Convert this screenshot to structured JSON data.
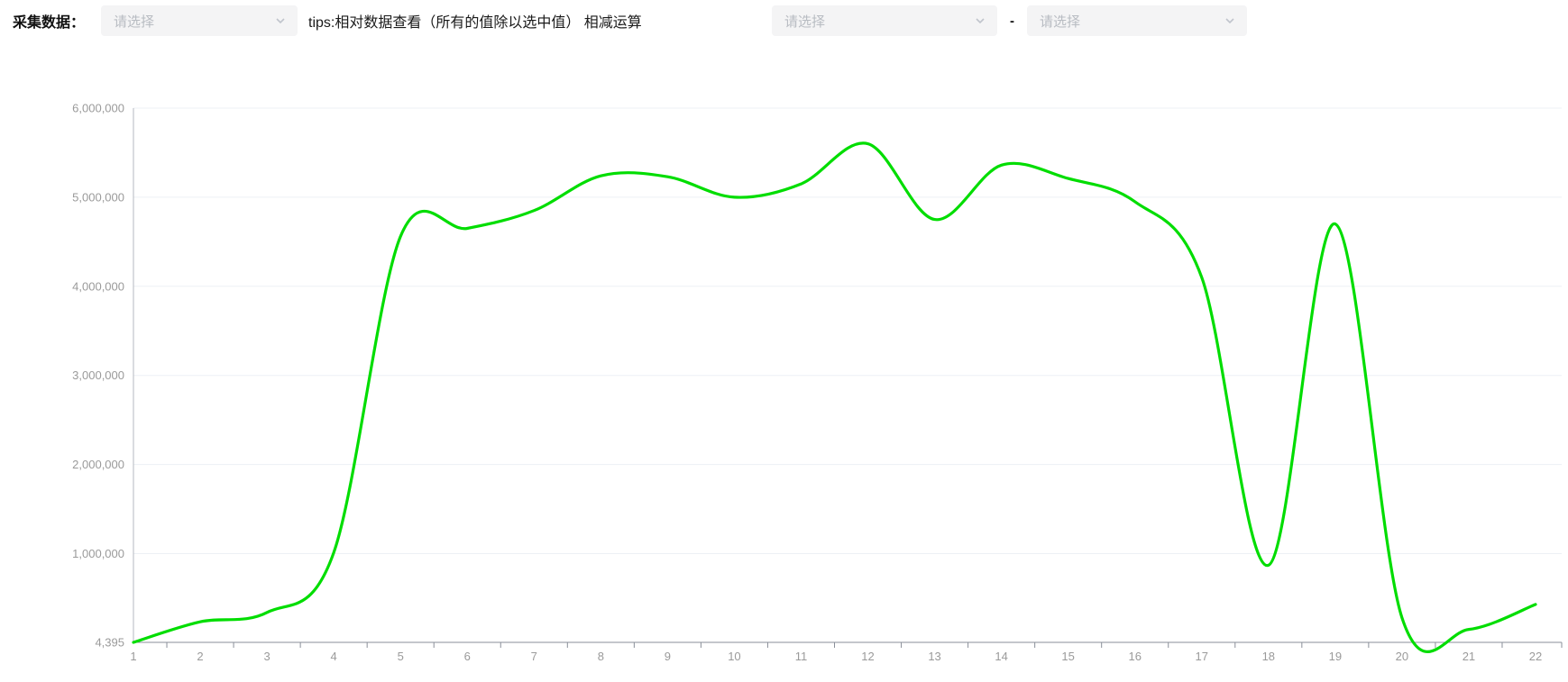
{
  "toolbar": {
    "label": "采集数据：",
    "select1_placeholder": "请选择",
    "tips": "tips:相对数据查看（所有的值除以选中值） 相减运算",
    "select2_placeholder": "请选择",
    "separator": "-",
    "select3_placeholder": "请选择"
  },
  "colors": {
    "line": "#00dd00",
    "grid": "#edf0f5",
    "x_axis": "#8a8f99",
    "y_axis": "#b5b9c0",
    "tick": "#8a8f99",
    "axis_label": "#9a9a9a",
    "select_bg": "#f4f4f5",
    "placeholder": "#b8bcc2"
  },
  "chart_data": {
    "type": "line",
    "smooth": true,
    "title": "",
    "xlabel": "",
    "ylabel": "",
    "legend": null,
    "grid": "horizontal-only",
    "x": [
      1,
      2,
      3,
      4,
      5,
      6,
      7,
      8,
      9,
      10,
      11,
      12,
      13,
      14,
      15,
      16,
      17,
      18,
      19,
      20,
      21,
      22
    ],
    "x_labels": [
      "1",
      "2",
      "3",
      "4",
      "5",
      "6",
      "7",
      "8",
      "9",
      "10",
      "11",
      "12",
      "13",
      "14",
      "15",
      "16",
      "17",
      "18",
      "19",
      "20",
      "21",
      "22"
    ],
    "values": [
      4395,
      235000,
      340000,
      1010000,
      4560000,
      4650000,
      4850000,
      5240000,
      5230000,
      5000000,
      5150000,
      5600000,
      4750000,
      5360000,
      5210000,
      4950000,
      4100000,
      870000,
      4700000,
      280000,
      150000,
      430000
    ],
    "ylim": [
      4395,
      6000000
    ],
    "y_tick_values": [
      4395,
      1000000,
      2000000,
      3000000,
      4000000,
      5000000,
      6000000
    ],
    "y_tick_labels": [
      "4,395",
      "1,000,000",
      "2,000,000",
      "3,000,000",
      "4,000,000",
      "5,000,000",
      "6,000,000"
    ]
  }
}
